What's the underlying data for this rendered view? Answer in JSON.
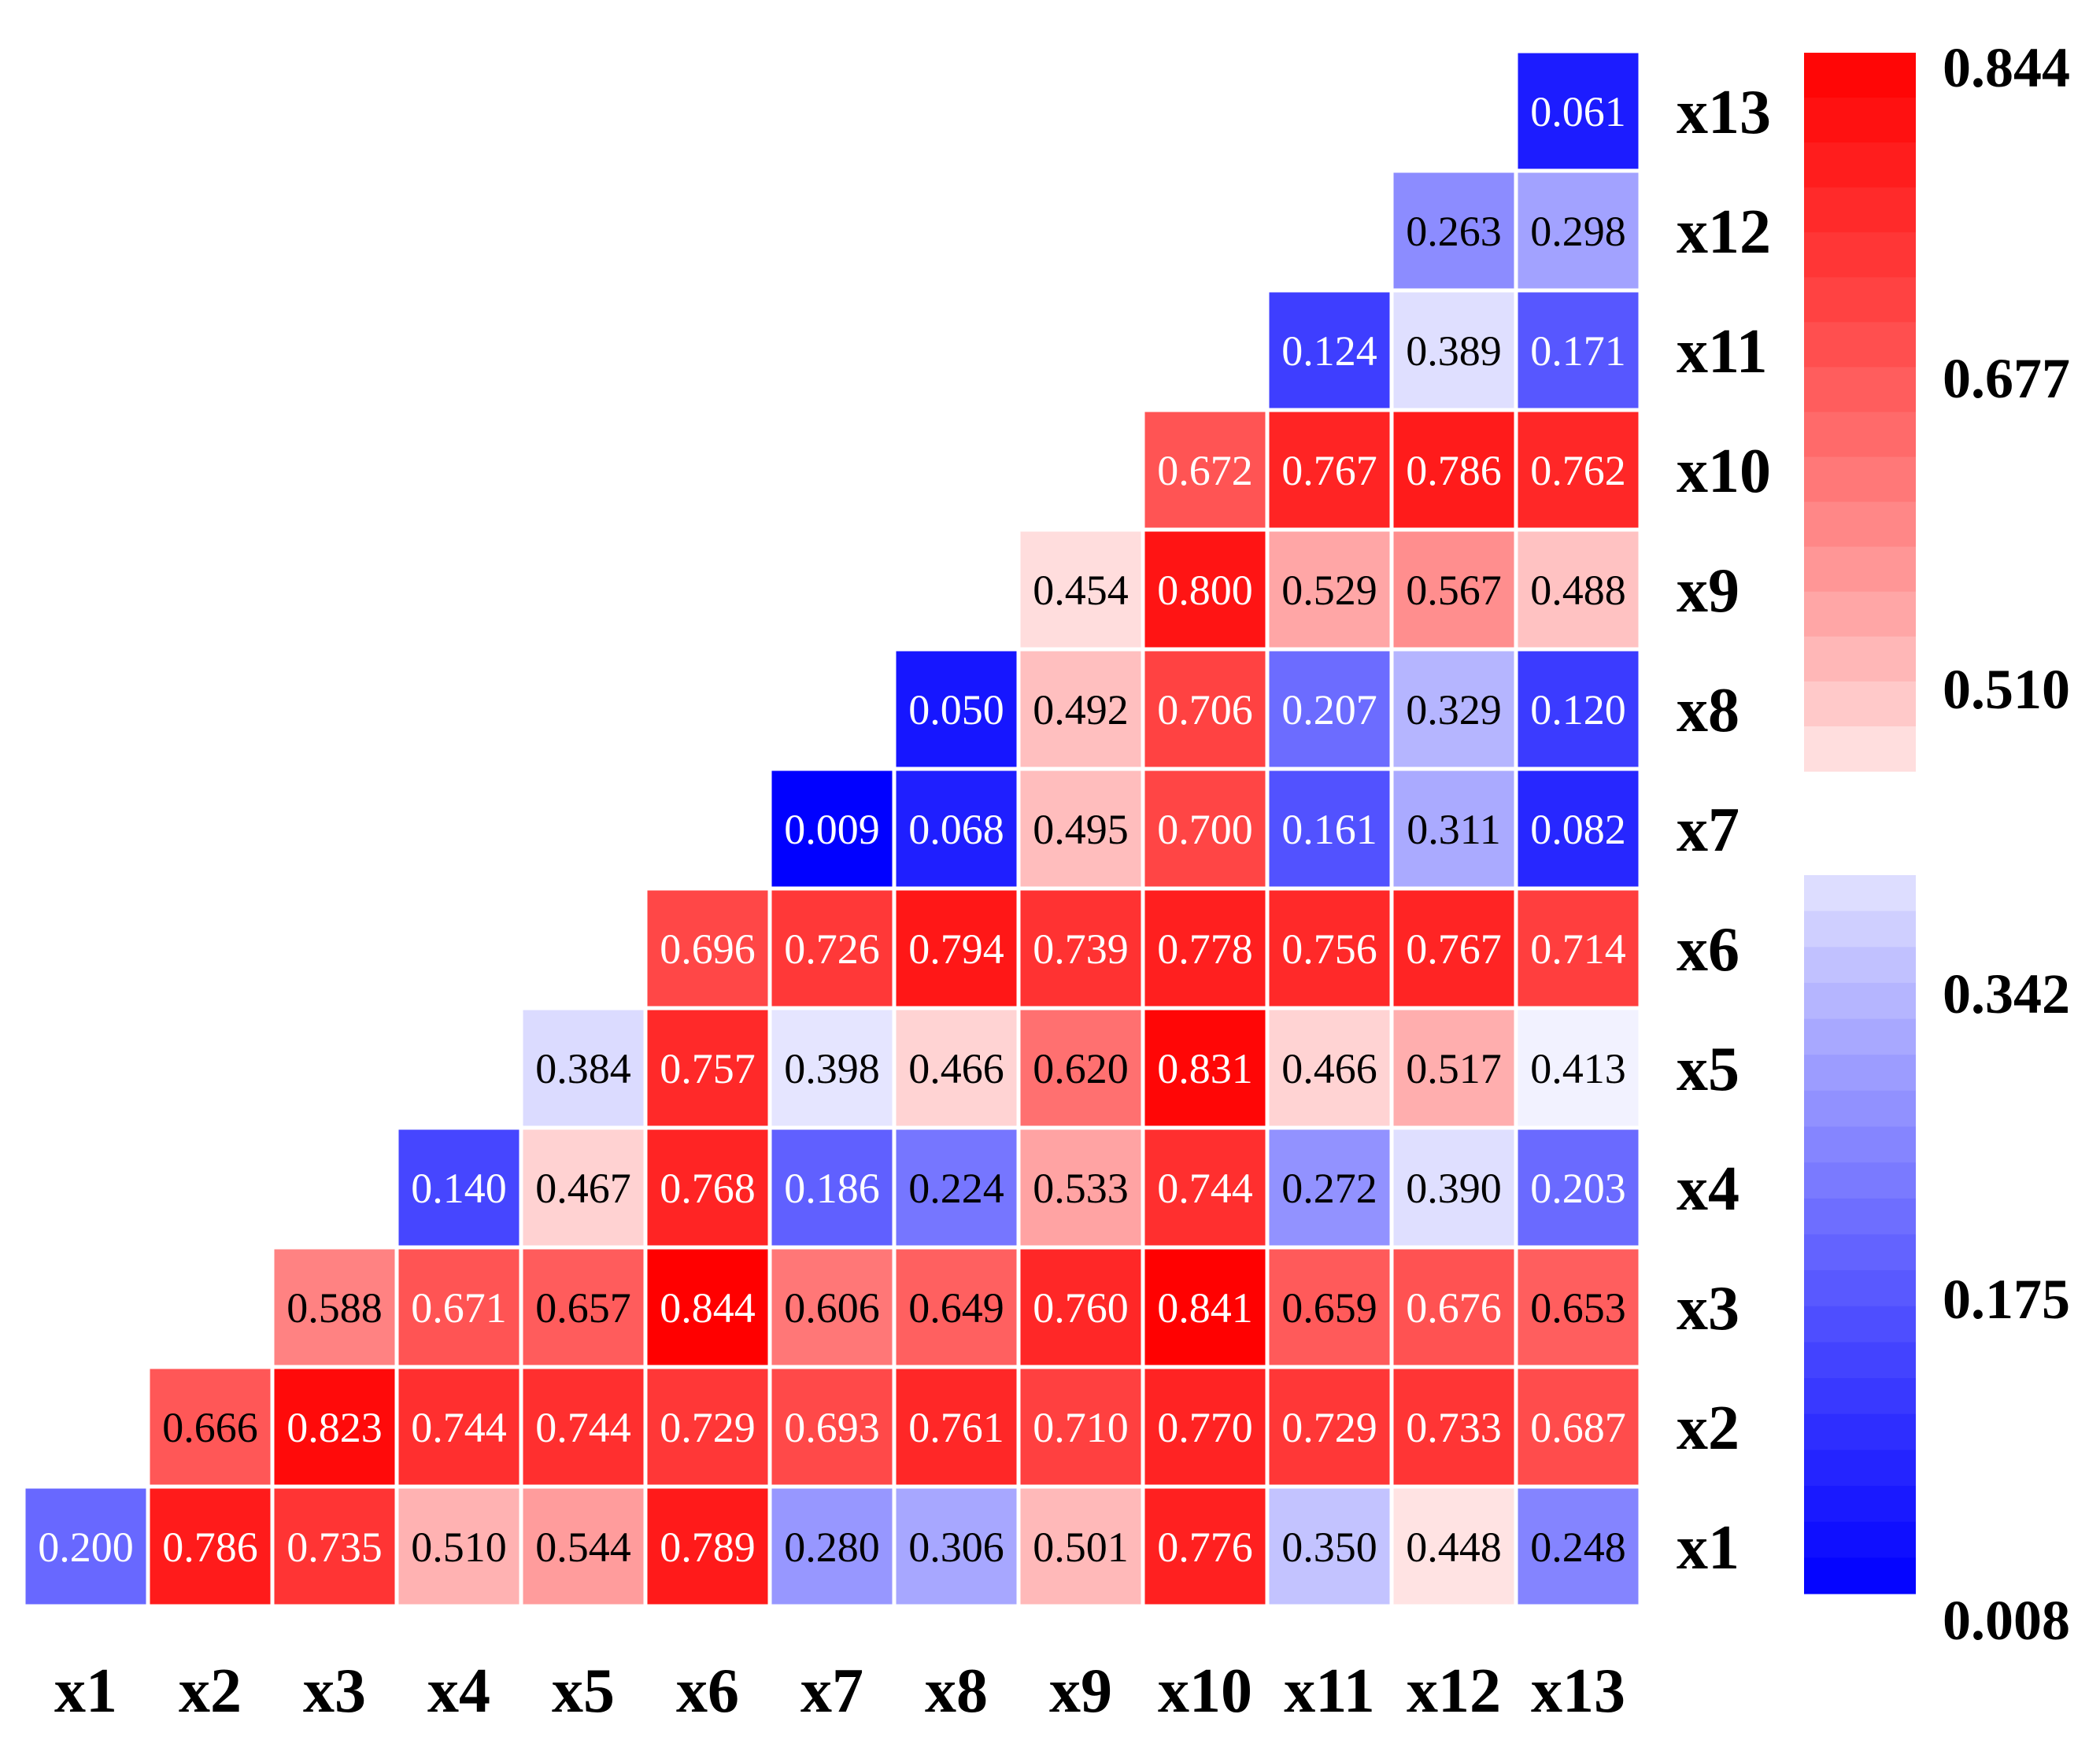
{
  "chart_data": {
    "type": "heatmap",
    "x_labels": [
      "x1",
      "x2",
      "x3",
      "x4",
      "x5",
      "x6",
      "x7",
      "x8",
      "x9",
      "x10",
      "x11",
      "x12",
      "x13"
    ],
    "y_labels": [
      "x1",
      "x2",
      "x3",
      "x4",
      "x5",
      "x6",
      "x7",
      "x8",
      "x9",
      "x10",
      "x11",
      "x12",
      "x13"
    ],
    "values": [
      [
        "0.200",
        "0.786",
        "0.735",
        "0.510",
        "0.544",
        "0.789",
        "0.280",
        "0.306",
        "0.501",
        "0.776",
        "0.350",
        "0.448",
        "0.248"
      ],
      [
        null,
        "0.666",
        "0.823",
        "0.744",
        "0.744",
        "0.729",
        "0.693",
        "0.761",
        "0.710",
        "0.770",
        "0.729",
        "0.733",
        "0.687"
      ],
      [
        null,
        null,
        "0.588",
        "0.671",
        "0.657",
        "0.844",
        "0.606",
        "0.649",
        "0.760",
        "0.841",
        "0.659",
        "0.676",
        "0.653"
      ],
      [
        null,
        null,
        null,
        "0.140",
        "0.467",
        "0.768",
        "0.186",
        "0.224",
        "0.533",
        "0.744",
        "0.272",
        "0.390",
        "0.203"
      ],
      [
        null,
        null,
        null,
        null,
        "0.384",
        "0.757",
        "0.398",
        "0.466",
        "0.620",
        "0.831",
        "0.466",
        "0.517",
        "0.413"
      ],
      [
        null,
        null,
        null,
        null,
        null,
        "0.696",
        "0.726",
        "0.794",
        "0.739",
        "0.778",
        "0.756",
        "0.767",
        "0.714"
      ],
      [
        null,
        null,
        null,
        null,
        null,
        null,
        "0.009",
        "0.068",
        "0.495",
        "0.700",
        "0.161",
        "0.311",
        "0.082"
      ],
      [
        null,
        null,
        null,
        null,
        null,
        null,
        null,
        "0.050",
        "0.492",
        "0.706",
        "0.207",
        "0.329",
        "0.120"
      ],
      [
        null,
        null,
        null,
        null,
        null,
        null,
        null,
        null,
        "0.454",
        "0.800",
        "0.529",
        "0.567",
        "0.488"
      ],
      [
        null,
        null,
        null,
        null,
        null,
        null,
        null,
        null,
        null,
        "0.672",
        "0.767",
        "0.786",
        "0.762"
      ],
      [
        null,
        null,
        null,
        null,
        null,
        null,
        null,
        null,
        null,
        null,
        "0.124",
        "0.389",
        "0.171"
      ],
      [
        null,
        null,
        null,
        null,
        null,
        null,
        null,
        null,
        null,
        null,
        null,
        "0.263",
        "0.298"
      ],
      [
        null,
        null,
        null,
        null,
        null,
        null,
        null,
        null,
        null,
        null,
        null,
        null,
        "0.061"
      ]
    ],
    "colorbar": {
      "min": 0.008,
      "max": 0.844,
      "midpoint": 0.426,
      "ticks": [
        "0.844",
        "0.677",
        "0.510",
        "0.342",
        "0.175",
        "0.008"
      ],
      "low_color": "#0000ff",
      "mid_color": "#ffffff",
      "high_color": "#ff0000"
    },
    "grid": false
  }
}
